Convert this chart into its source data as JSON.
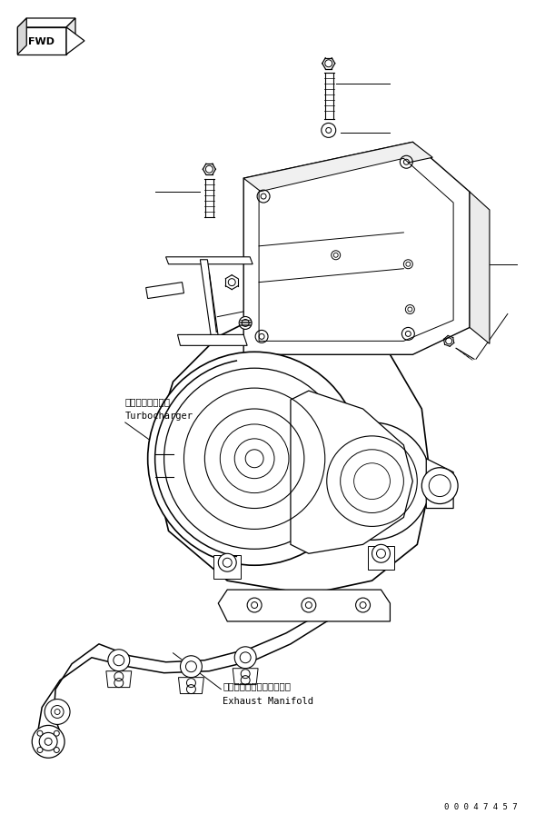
{
  "bg_color": "#ffffff",
  "line_color": "#000000",
  "fig_width": 6.11,
  "fig_height": 9.07,
  "dpi": 100,
  "fwd_label": "FWD",
  "label_turbocharger_jp": "ターボチャージャ",
  "label_turbocharger_en": "Turbocharger",
  "label_exhaust_jp": "エキゾーストマニホールド",
  "label_exhaust_en": "Exhaust Manifold",
  "part_number": "0 0 0 4 7 4 5 7",
  "font_size_label": 7.5,
  "font_size_part": 6.5
}
